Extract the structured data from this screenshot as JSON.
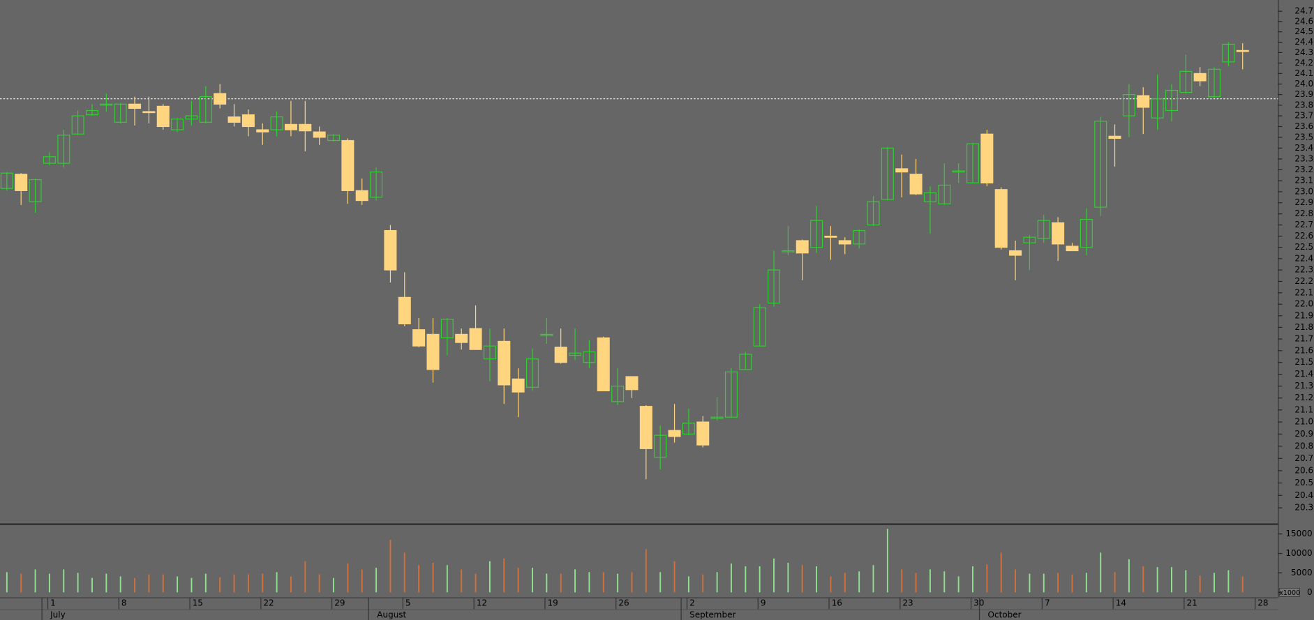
{
  "chart_data": {
    "type": "candlestick",
    "categories": [
      null,
      null,
      null,
      "1",
      null,
      null,
      null,
      null,
      "8",
      null,
      null,
      null,
      null,
      "15",
      null,
      null,
      null,
      null,
      "22",
      null,
      null,
      null,
      null,
      "29",
      null,
      null,
      null,
      null,
      "5",
      null,
      null,
      null,
      null,
      "12",
      null,
      null,
      null,
      null,
      "19",
      null,
      null,
      null,
      null,
      "26",
      null,
      null,
      null,
      null,
      "2",
      null,
      null,
      null,
      null,
      "9",
      null,
      null,
      null,
      null,
      "16",
      null,
      null,
      null,
      null,
      "23",
      null,
      null,
      null,
      null,
      "30",
      null,
      null,
      null,
      null,
      "7",
      null,
      null,
      null,
      null,
      "14",
      null,
      null,
      null,
      null,
      "21",
      null,
      null,
      null,
      null,
      "28"
    ],
    "months": [
      {
        "label": "July",
        "start": 3
      },
      {
        "label": "August",
        "start": 26
      },
      {
        "label": "September",
        "start": 48
      },
      {
        "label": "October",
        "start": 69
      }
    ],
    "open": [
      23.03,
      23.16,
      22.91,
      23.26,
      23.26,
      23.53,
      23.71,
      23.8,
      23.64,
      23.81,
      23.74,
      23.79,
      23.57,
      23.67,
      23.64,
      23.91,
      23.69,
      23.71,
      23.57,
      23.57,
      23.62,
      23.62,
      23.55,
      23.47,
      23.47,
      23.01,
      22.95,
      22.65,
      22.06,
      21.78,
      21.74,
      21.71,
      21.74,
      21.79,
      21.53,
      21.68,
      21.36,
      21.29,
      21.73,
      21.63,
      21.56,
      21.5,
      21.71,
      21.17,
      21.38,
      21.13,
      20.71,
      20.93,
      20.9,
      21.0,
      21.03,
      21.04,
      21.44,
      21.64,
      22.01,
      22.46,
      22.56,
      22.5,
      22.6,
      22.56,
      22.53,
      22.7,
      22.93,
      23.21,
      23.16,
      22.91,
      22.89,
      23.18,
      23.08,
      23.53,
      23.02,
      22.47,
      22.54,
      22.58,
      22.72,
      22.51,
      22.5,
      22.86,
      23.51,
      23.7,
      23.89,
      23.68,
      23.75,
      23.92,
      24.1,
      23.88,
      24.21,
      24.32,
      null
    ],
    "high": [
      23.18,
      23.17,
      23.12,
      23.36,
      23.57,
      23.75,
      23.81,
      23.91,
      23.82,
      23.88,
      23.88,
      23.81,
      23.68,
      23.84,
      23.98,
      24.0,
      23.81,
      23.76,
      23.63,
      23.74,
      23.84,
      23.84,
      23.6,
      23.53,
      23.49,
      23.12,
      23.22,
      22.7,
      22.28,
      21.88,
      21.88,
      21.88,
      21.79,
      21.99,
      21.79,
      21.79,
      21.45,
      21.62,
      21.88,
      21.79,
      21.79,
      21.69,
      21.72,
      21.45,
      21.38,
      21.14,
      20.97,
      21.15,
      21.11,
      21.05,
      21.21,
      21.45,
      21.59,
      22.0,
      22.47,
      22.69,
      22.57,
      22.87,
      22.69,
      22.59,
      22.66,
      22.96,
      23.41,
      23.34,
      23.3,
      23.05,
      23.26,
      23.26,
      23.45,
      23.57,
      23.04,
      22.56,
      22.61,
      22.79,
      22.77,
      22.54,
      22.85,
      23.69,
      23.62,
      24.0,
      23.97,
      24.09,
      24.0,
      24.28,
      24.16,
      24.16,
      24.4,
      24.39,
      null
    ],
    "low": [
      23.01,
      22.88,
      22.81,
      23.24,
      23.22,
      23.52,
      23.7,
      23.74,
      23.63,
      23.61,
      23.63,
      23.57,
      23.55,
      23.61,
      23.63,
      23.77,
      23.6,
      23.51,
      23.43,
      23.51,
      23.51,
      23.37,
      23.43,
      23.46,
      22.89,
      22.88,
      22.92,
      22.19,
      21.81,
      21.63,
      21.33,
      21.56,
      21.61,
      21.61,
      21.34,
      21.15,
      21.04,
      21.26,
      21.66,
      21.49,
      21.52,
      21.45,
      21.26,
      21.14,
      21.2,
      20.53,
      20.61,
      20.83,
      20.89,
      20.79,
      21.01,
      21.04,
      21.44,
      21.64,
      21.98,
      22.43,
      22.21,
      22.45,
      22.39,
      22.44,
      22.49,
      22.69,
      22.92,
      22.95,
      22.97,
      22.62,
      22.88,
      23.08,
      23.08,
      23.05,
      22.48,
      22.21,
      22.3,
      22.54,
      22.38,
      22.47,
      22.43,
      22.78,
      23.23,
      23.5,
      23.53,
      23.57,
      23.65,
      23.91,
      23.98,
      23.87,
      24.17,
      24.14,
      null
    ],
    "close": [
      23.17,
      23.01,
      23.11,
      23.32,
      23.52,
      23.7,
      23.75,
      23.81,
      23.81,
      23.77,
      23.73,
      23.6,
      23.67,
      23.7,
      23.88,
      23.81,
      23.64,
      23.6,
      23.55,
      23.69,
      23.57,
      23.56,
      23.5,
      23.52,
      23.01,
      22.92,
      23.18,
      22.3,
      21.83,
      21.64,
      21.44,
      21.87,
      21.67,
      21.61,
      21.64,
      21.31,
      21.25,
      21.53,
      21.74,
      21.5,
      21.58,
      21.59,
      21.26,
      21.3,
      21.27,
      20.78,
      20.89,
      20.88,
      20.99,
      20.81,
      21.04,
      21.42,
      21.57,
      21.97,
      22.3,
      22.47,
      22.45,
      22.74,
      22.59,
      22.53,
      22.65,
      22.91,
      23.4,
      23.18,
      22.98,
      22.99,
      23.06,
      23.19,
      23.44,
      23.08,
      22.5,
      22.43,
      22.59,
      22.74,
      22.53,
      22.47,
      22.75,
      23.65,
      23.49,
      23.9,
      23.78,
      23.86,
      23.94,
      24.12,
      24.03,
      24.14,
      24.38,
      24.31,
      null
    ],
    "volume": [
      5200,
      4800,
      5900,
      4800,
      5900,
      5000,
      3700,
      4800,
      4100,
      3700,
      4600,
      4600,
      4100,
      3700,
      4800,
      3900,
      4600,
      4600,
      4800,
      5200,
      4100,
      8000,
      4600,
      3700,
      7400,
      5900,
      6300,
      13500,
      10200,
      7000,
      7600,
      7000,
      5900,
      4800,
      8000,
      8700,
      6300,
      6300,
      4800,
      4800,
      5900,
      5200,
      5200,
      4800,
      5200,
      11100,
      5200,
      8000,
      4100,
      4600,
      5200,
      7400,
      6700,
      6700,
      8700,
      7600,
      7000,
      6700,
      4100,
      5000,
      5400,
      7000,
      16300,
      5900,
      5000,
      5900,
      5400,
      4100,
      6700,
      7200,
      10200,
      5900,
      4800,
      4800,
      5000,
      4600,
      5000,
      10200,
      5200,
      8500,
      6700,
      6500,
      6500,
      5700,
      4300,
      5000,
      5700,
      4100,
      null
    ],
    "ylim": [
      20.18,
      24.81
    ],
    "log_scale": true,
    "yticks": [
      20.3,
      20.4,
      20.5,
      20.6,
      20.7,
      20.8,
      20.9,
      {
        "value": 21,
        "label": "21.0"
      },
      21.1,
      21.2,
      21.3,
      21.4,
      21.5,
      21.6,
      21.7,
      21.8,
      21.9,
      {
        "value": 22,
        "label": "22.0"
      },
      22.1,
      22.2,
      22.3,
      22.4,
      22.5,
      22.6,
      22.7,
      22.8,
      22.9,
      {
        "value": 23,
        "label": "23.0"
      },
      23.1,
      23.2,
      23.3,
      23.4,
      23.5,
      23.6,
      23.7,
      23.8,
      23.9,
      {
        "value": 24,
        "label": "24.0"
      },
      24.1,
      24.2,
      24.3,
      24.4,
      24.5,
      24.6,
      24.7
    ],
    "reference_line": 23.86,
    "volume_ylim": [
      0,
      17000
    ],
    "volume_yticks": [
      0,
      5000,
      10000,
      15000
    ],
    "volume_unit_label": "x1000",
    "up_color": "#33cc33",
    "down_color": "#ffd580",
    "volume_up_color": "#8fe08f",
    "volume_down_color": "#d2703a"
  }
}
